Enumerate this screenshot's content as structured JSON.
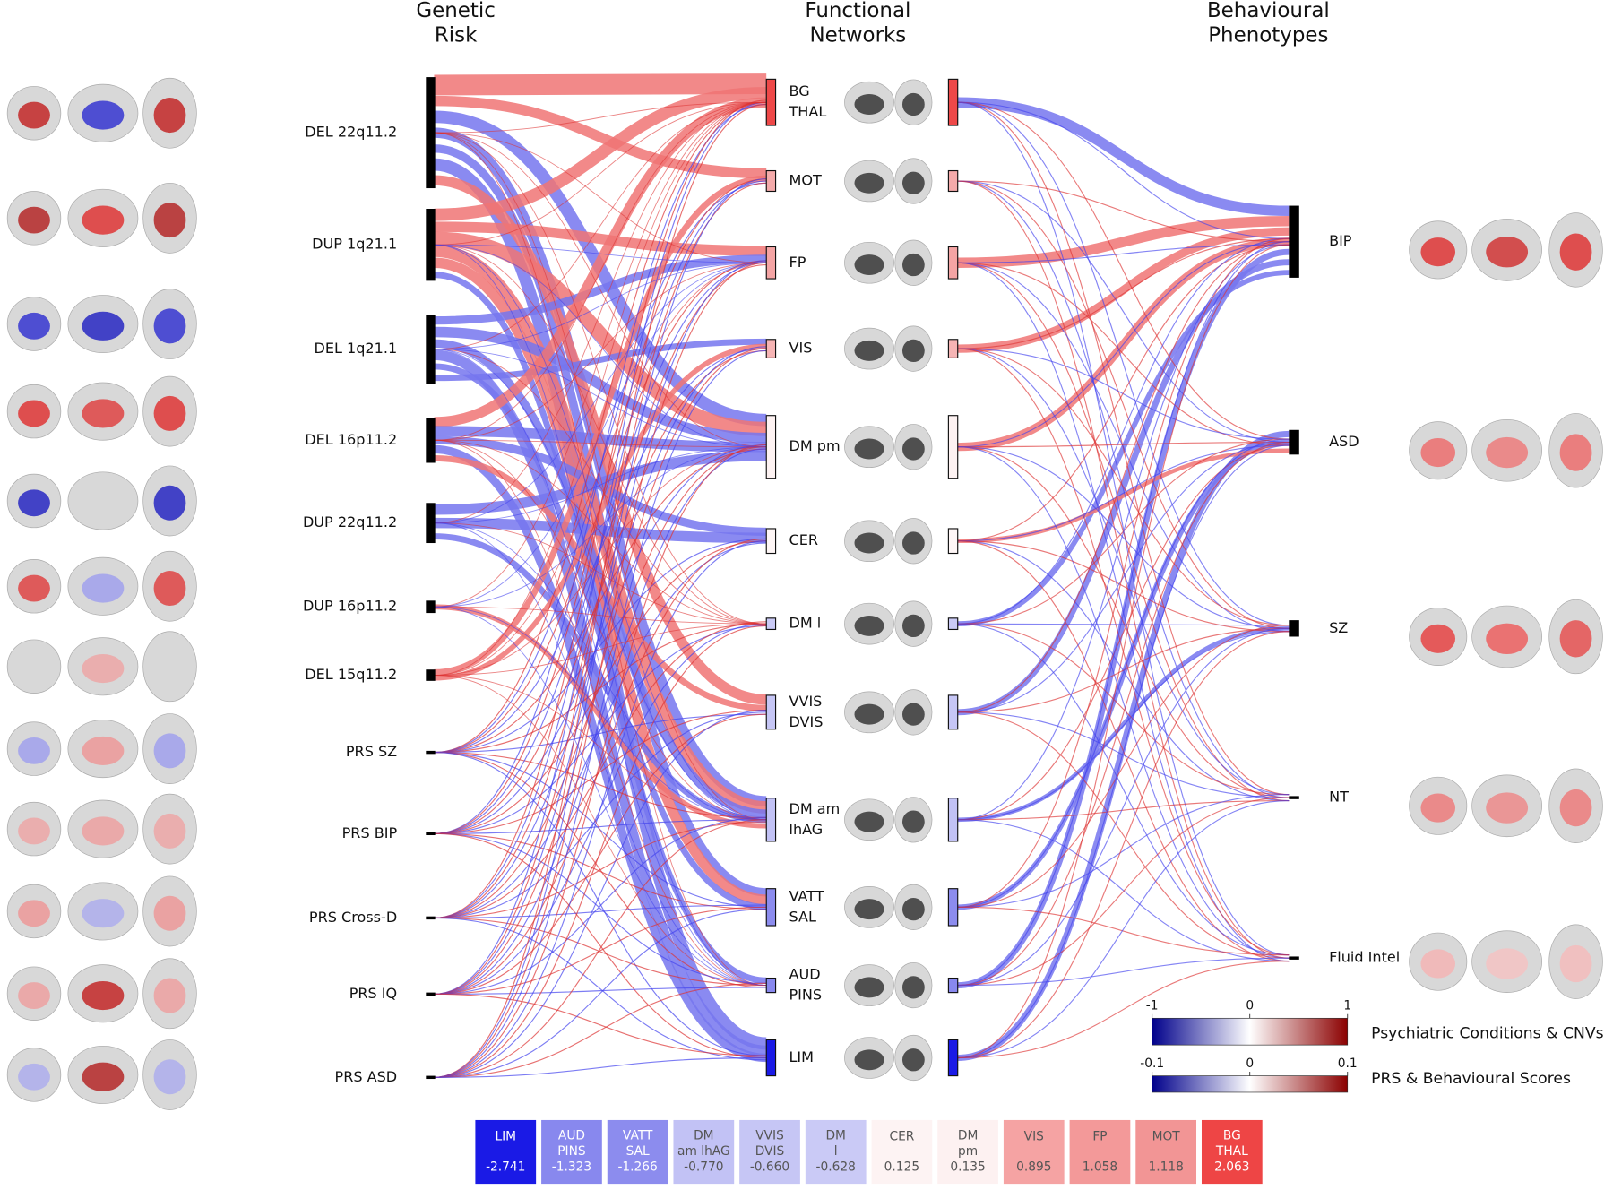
{
  "headers": [
    [
      "Genetic",
      "Risk"
    ],
    [
      "Functional",
      "Networks"
    ],
    [
      "Behavioural",
      "Phenotypes"
    ]
  ],
  "genetic_risk": [
    "DEL 22q11.2",
    "DUP 1q21.1",
    "DEL 1q21.1",
    "DEL 16p11.2",
    "DUP 22q11.2",
    "DUP 16p11.2",
    "DEL 15q11.2",
    "PRS SZ",
    "PRS BIP",
    "PRS Cross-D",
    "PRS IQ",
    "PRS ASD"
  ],
  "functional_networks": [
    {
      "label": [
        "BG",
        "THAL"
      ],
      "color": "#ee4848"
    },
    {
      "label": [
        "MOT"
      ],
      "color": "#f4aaaa"
    },
    {
      "label": [
        "FP"
      ],
      "color": "#f4a4a4"
    },
    {
      "label": [
        "VIS"
      ],
      "color": "#f6b4b4"
    },
    {
      "label": [
        "DM pm"
      ],
      "color": "#fdf2f2"
    },
    {
      "label": [
        "CER"
      ],
      "color": "#fef6f6"
    },
    {
      "label": [
        "DM l"
      ],
      "color": "#cacaf6"
    },
    {
      "label": [
        "VVIS",
        "DVIS"
      ],
      "color": "#c6c6f5"
    },
    {
      "label": [
        "DM am",
        "lhAG"
      ],
      "color": "#c2c2f5"
    },
    {
      "label": [
        "VATT",
        "SAL"
      ],
      "color": "#8c8cee"
    },
    {
      "label": [
        "AUD",
        "PINS"
      ],
      "color": "#8888ee"
    },
    {
      "label": [
        "LIM"
      ],
      "color": "#1a1ae6"
    }
  ],
  "phenotypes": [
    "BIP",
    "ASD",
    "SZ",
    "NT",
    "Fluid Intel"
  ],
  "colorbars": [
    {
      "label": "Psychiatric Conditions & CNVs",
      "ticks": [
        "-1",
        "0",
        "1"
      ],
      "colors": [
        "#00008b",
        "#ffffff",
        "#8b0000"
      ]
    },
    {
      "label": "PRS &  Behavioural Scores",
      "ticks": [
        "-0.1",
        "0",
        "0.1"
      ],
      "colors": [
        "#00008b",
        "#ffffff",
        "#8b0000"
      ]
    }
  ],
  "summary": [
    {
      "label": [
        "LIM"
      ],
      "value": "-2.741",
      "color": "#1a1ae6"
    },
    {
      "label": [
        "AUD",
        "PINS"
      ],
      "value": "-1.323",
      "color": "#8888ee"
    },
    {
      "label": [
        "VATT",
        "SAL"
      ],
      "value": "-1.266",
      "color": "#8c8cee"
    },
    {
      "label": [
        "DM",
        "am lhAG"
      ],
      "value": "-0.770",
      "color": "#c2c2f5"
    },
    {
      "label": [
        "VVIS",
        "DVIS"
      ],
      "value": "-0.660",
      "color": "#c6c6f5"
    },
    {
      "label": [
        "DM",
        "l"
      ],
      "value": "-0.628",
      "color": "#cacaf6"
    },
    {
      "label": [
        "CER"
      ],
      "value": "0.125",
      "color": "#fdf3f3"
    },
    {
      "label": [
        "DM",
        "pm"
      ],
      "value": "0.135",
      "color": "#fdf1f1"
    },
    {
      "label": [
        "VIS"
      ],
      "value": "0.895",
      "color": "#f5a3a3"
    },
    {
      "label": [
        "FP"
      ],
      "value": "1.058",
      "color": "#f39999"
    },
    {
      "label": [
        "MOT"
      ],
      "value": "1.118",
      "color": "#f29595"
    },
    {
      "label": [
        "BG",
        "THAL"
      ],
      "value": "2.063",
      "color": "#ee4545"
    }
  ]
}
